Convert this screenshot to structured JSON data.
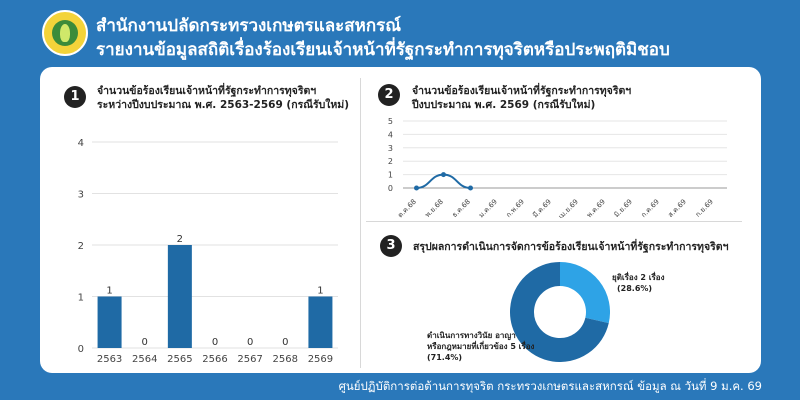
{
  "header": {
    "title_line1": "สำนักงานปลัดกระทรวงเกษตรและสหกรณ์",
    "title_line2": "รายงานข้อมูลสถิติเรื่องร้องเรียนเจ้าหน้าที่รัฐกระทำการทุจริตหรือประพฤติมิชอบ"
  },
  "section1": {
    "number": "1",
    "title_line1": "จำนวนข้อร้องเรียนเจ้าหน้าที่รัฐกระทำการทุจริตฯ",
    "title_line2": "ระหว่างปีงบประมาณ พ.ศ. 2563-2569 (กรณีรับใหม่)"
  },
  "section2": {
    "number": "2",
    "title_line1": "จำนวนข้อร้องเรียนเจ้าหน้าที่รัฐกระทำการทุจริตฯ",
    "title_line2": "ปีงบประมาณ พ.ศ. 2569 (กรณีรับใหม่)"
  },
  "section3": {
    "number": "3",
    "title": "สรุปผลการดำเนินการจัดการข้อร้องเรียนเจ้าหน้าที่รัฐกระทำการทุจริตฯ",
    "label_closed_line1": "ยุติเรื่อง 2 เรื่อง",
    "label_closed_line2": "(28.6%)",
    "label_ongoing_line1": "ดำเนินการทางวินัย อาญา",
    "label_ongoing_line2": "หรือกฎหมายที่เกี่ยวข้อง 5 เรื่อง",
    "label_ongoing_line3": "(71.4%)"
  },
  "footer": {
    "text": "ศูนย์ปฏิบัติการต่อต้านการทุจริต กระทรวงเกษตรและสหกรณ์ ข้อมูล ณ วันที่ 9 ม.ค. 69"
  },
  "colors": {
    "background": "#2a78ba",
    "bar": "#1f6aa5",
    "donut_main": "#1f6aa5",
    "donut_light": "#2ea3e6"
  },
  "chart_data": [
    {
      "type": "bar",
      "categories": [
        "2563",
        "2564",
        "2565",
        "2566",
        "2567",
        "2568",
        "2569"
      ],
      "values": [
        1,
        0,
        2,
        0,
        0,
        0,
        1
      ],
      "ylim": [
        0,
        4
      ],
      "yticks": [
        0,
        1,
        2,
        3,
        4
      ],
      "grid": true
    },
    {
      "type": "line",
      "categories": [
        "ต.ค.68",
        "พ.ย.68",
        "ธ.ค.68",
        "ม.ค.69",
        "ก.พ.69",
        "มี.ค.69",
        "เม.ย.69",
        "พ.ค.69",
        "มิ.ย.69",
        "ก.ค.69",
        "ส.ค.69",
        "ก.ย.69"
      ],
      "values": [
        0,
        1,
        0,
        null,
        null,
        null,
        null,
        null,
        null,
        null,
        null,
        null
      ],
      "ylim": [
        0,
        5
      ],
      "yticks": [
        0,
        1,
        2,
        3,
        4,
        5
      ],
      "grid": true
    },
    {
      "type": "pie",
      "categories": [
        "ยุติเรื่อง",
        "ดำเนินการทางวินัย อาญา หรือกฎหมายที่เกี่ยวข้อง"
      ],
      "values": [
        2,
        5
      ],
      "percent": [
        28.6,
        71.4
      ]
    }
  ]
}
